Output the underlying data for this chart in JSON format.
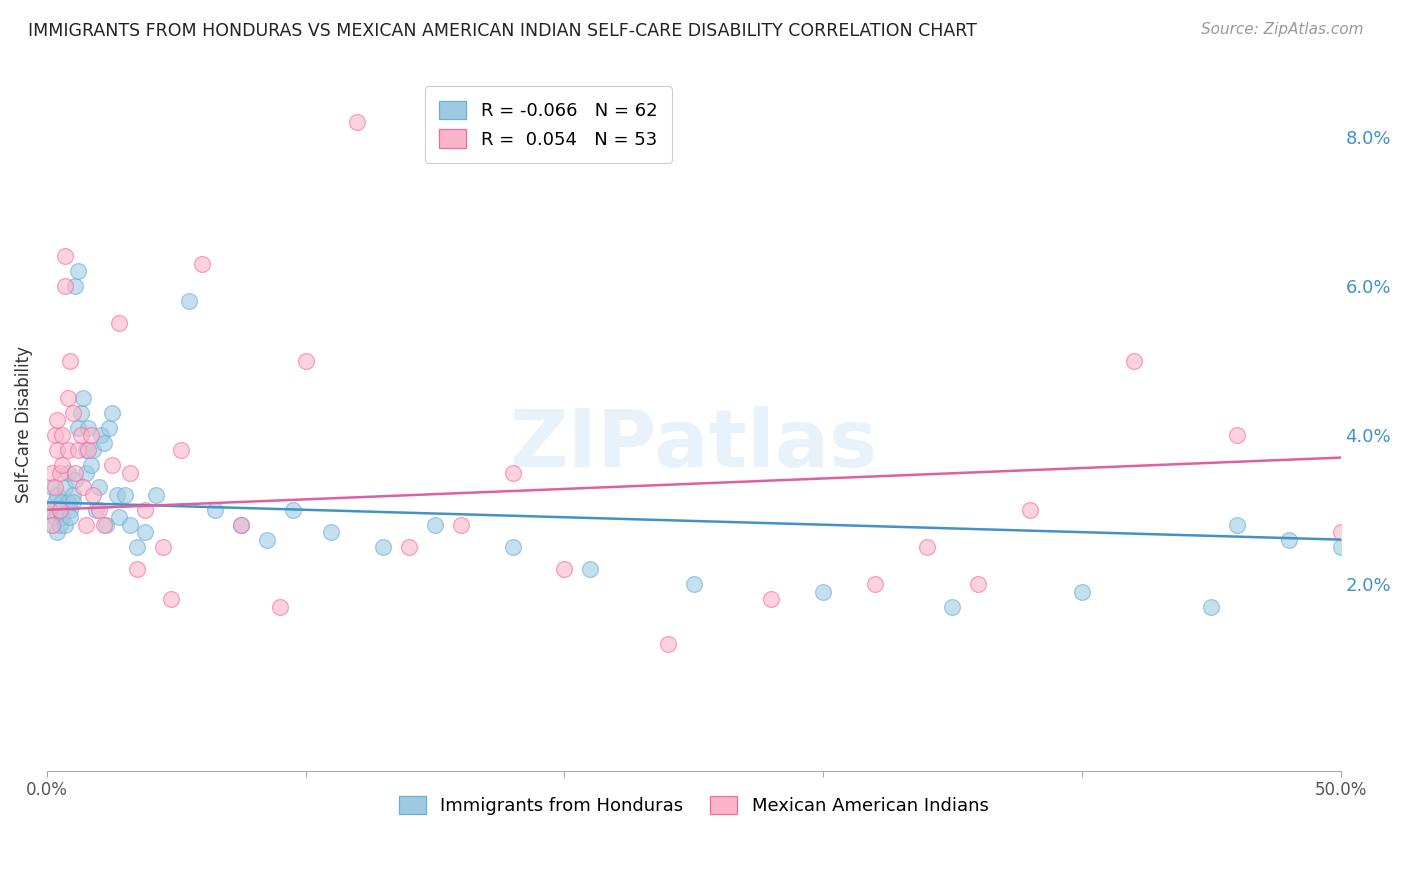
{
  "title": "IMMIGRANTS FROM HONDURAS VS MEXICAN AMERICAN INDIAN SELF-CARE DISABILITY CORRELATION CHART",
  "source": "Source: ZipAtlas.com",
  "ylabel": "Self-Care Disability",
  "right_yticks": [
    0.0,
    0.02,
    0.04,
    0.06,
    0.08
  ],
  "right_yticklabels": [
    "",
    "2.0%",
    "4.0%",
    "6.0%",
    "8.0%"
  ],
  "xlim": [
    0.0,
    0.5
  ],
  "ylim": [
    -0.005,
    0.088
  ],
  "legend_r1": "R = -0.066",
  "legend_n1": "N = 62",
  "legend_r2": "R =  0.054",
  "legend_n2": "N = 53",
  "blue_color": "#9ecae1",
  "pink_color": "#fbb4c9",
  "blue_edge_color": "#6baed6",
  "pink_edge_color": "#f768a1",
  "blue_line_color": "#4292c6",
  "pink_line_color": "#e05fa0",
  "right_axis_color": "#4292c6",
  "watermark": "ZIPatlas",
  "blue_scatter_x": [
    0.001,
    0.002,
    0.002,
    0.003,
    0.003,
    0.004,
    0.004,
    0.005,
    0.005,
    0.006,
    0.006,
    0.007,
    0.007,
    0.008,
    0.008,
    0.009,
    0.009,
    0.01,
    0.01,
    0.011,
    0.011,
    0.012,
    0.012,
    0.013,
    0.014,
    0.015,
    0.015,
    0.016,
    0.017,
    0.018,
    0.019,
    0.02,
    0.021,
    0.022,
    0.023,
    0.024,
    0.025,
    0.027,
    0.028,
    0.03,
    0.032,
    0.035,
    0.038,
    0.042,
    0.055,
    0.065,
    0.075,
    0.085,
    0.095,
    0.11,
    0.13,
    0.15,
    0.18,
    0.21,
    0.25,
    0.3,
    0.35,
    0.4,
    0.45,
    0.5,
    0.46,
    0.48
  ],
  "blue_scatter_y": [
    0.03,
    0.028,
    0.033,
    0.029,
    0.031,
    0.027,
    0.032,
    0.028,
    0.03,
    0.031,
    0.029,
    0.033,
    0.028,
    0.035,
    0.031,
    0.03,
    0.029,
    0.032,
    0.031,
    0.034,
    0.06,
    0.062,
    0.041,
    0.043,
    0.045,
    0.035,
    0.038,
    0.041,
    0.036,
    0.038,
    0.03,
    0.033,
    0.04,
    0.039,
    0.028,
    0.041,
    0.043,
    0.032,
    0.029,
    0.032,
    0.028,
    0.025,
    0.027,
    0.032,
    0.058,
    0.03,
    0.028,
    0.026,
    0.03,
    0.027,
    0.025,
    0.028,
    0.025,
    0.022,
    0.02,
    0.019,
    0.017,
    0.019,
    0.017,
    0.025,
    0.028,
    0.026
  ],
  "pink_scatter_x": [
    0.001,
    0.002,
    0.002,
    0.003,
    0.003,
    0.004,
    0.004,
    0.005,
    0.005,
    0.006,
    0.006,
    0.007,
    0.007,
    0.008,
    0.008,
    0.009,
    0.01,
    0.011,
    0.012,
    0.013,
    0.014,
    0.015,
    0.016,
    0.017,
    0.018,
    0.02,
    0.022,
    0.025,
    0.028,
    0.032,
    0.038,
    0.045,
    0.052,
    0.06,
    0.1,
    0.12,
    0.14,
    0.16,
    0.18,
    0.2,
    0.24,
    0.28,
    0.32,
    0.36,
    0.38,
    0.42,
    0.46,
    0.5,
    0.34,
    0.075,
    0.09,
    0.035,
    0.048
  ],
  "pink_scatter_y": [
    0.03,
    0.028,
    0.035,
    0.04,
    0.033,
    0.038,
    0.042,
    0.035,
    0.03,
    0.04,
    0.036,
    0.06,
    0.064,
    0.038,
    0.045,
    0.05,
    0.043,
    0.035,
    0.038,
    0.04,
    0.033,
    0.028,
    0.038,
    0.04,
    0.032,
    0.03,
    0.028,
    0.036,
    0.055,
    0.035,
    0.03,
    0.025,
    0.038,
    0.063,
    0.05,
    0.082,
    0.025,
    0.028,
    0.035,
    0.022,
    0.012,
    0.018,
    0.02,
    0.02,
    0.03,
    0.05,
    0.04,
    0.027,
    0.025,
    0.028,
    0.017,
    0.022,
    0.018
  ],
  "blue_trend_y_start": 0.031,
  "blue_trend_y_end": 0.026,
  "pink_trend_y_start": 0.03,
  "pink_trend_y_end": 0.037
}
